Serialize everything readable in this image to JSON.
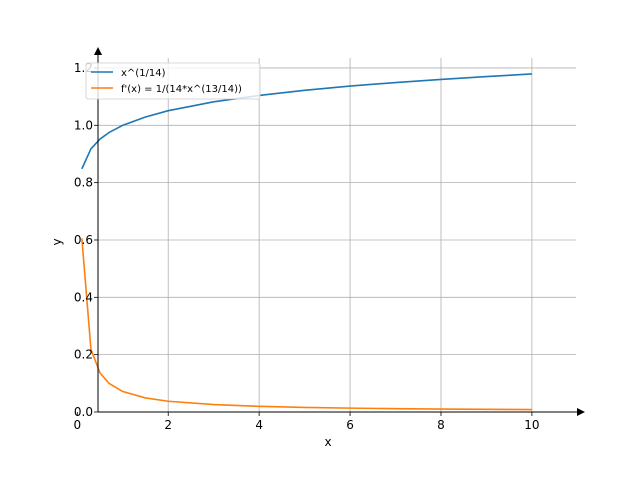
{
  "chart_data": {
    "type": "line",
    "xlabel": "x",
    "ylabel": "y",
    "xlim": [
      0,
      10.5
    ],
    "ylim": [
      0,
      1.25
    ],
    "xticks": [
      0,
      2,
      4,
      6,
      8,
      10
    ],
    "yticks": [
      0.0,
      0.2,
      0.4,
      0.6,
      0.8,
      1.0,
      1.2
    ],
    "xtick_labels": [
      "0",
      "2",
      "4",
      "6",
      "8",
      "10"
    ],
    "ytick_labels": [
      "0.0",
      "0.2",
      "0.4",
      "0.6",
      "0.8",
      "1.0",
      "1.2"
    ],
    "grid": true,
    "legend_position": "top-left",
    "series": [
      {
        "name": "x^(1/14)",
        "color": "#1f77b4",
        "x": [
          0.1,
          0.3,
          0.5,
          0.7,
          1,
          1.5,
          2,
          3,
          4,
          5,
          6,
          7,
          8,
          9,
          10
        ],
        "y": [
          0.848,
          0.918,
          0.952,
          0.975,
          1.0,
          1.029,
          1.051,
          1.082,
          1.104,
          1.122,
          1.137,
          1.149,
          1.16,
          1.17,
          1.179
        ]
      },
      {
        "name": "f'(x) = 1/(14*x^(13/14))",
        "color": "#ff7f0e",
        "x": [
          0.1,
          0.3,
          0.5,
          0.7,
          1,
          1.5,
          2,
          3,
          4,
          5,
          6,
          7,
          8,
          9,
          10
        ],
        "y": [
          0.606,
          0.219,
          0.136,
          0.0995,
          0.0714,
          0.049,
          0.0375,
          0.0258,
          0.0197,
          0.016,
          0.0135,
          0.0117,
          0.0104,
          0.0093,
          0.0084
        ]
      }
    ]
  }
}
